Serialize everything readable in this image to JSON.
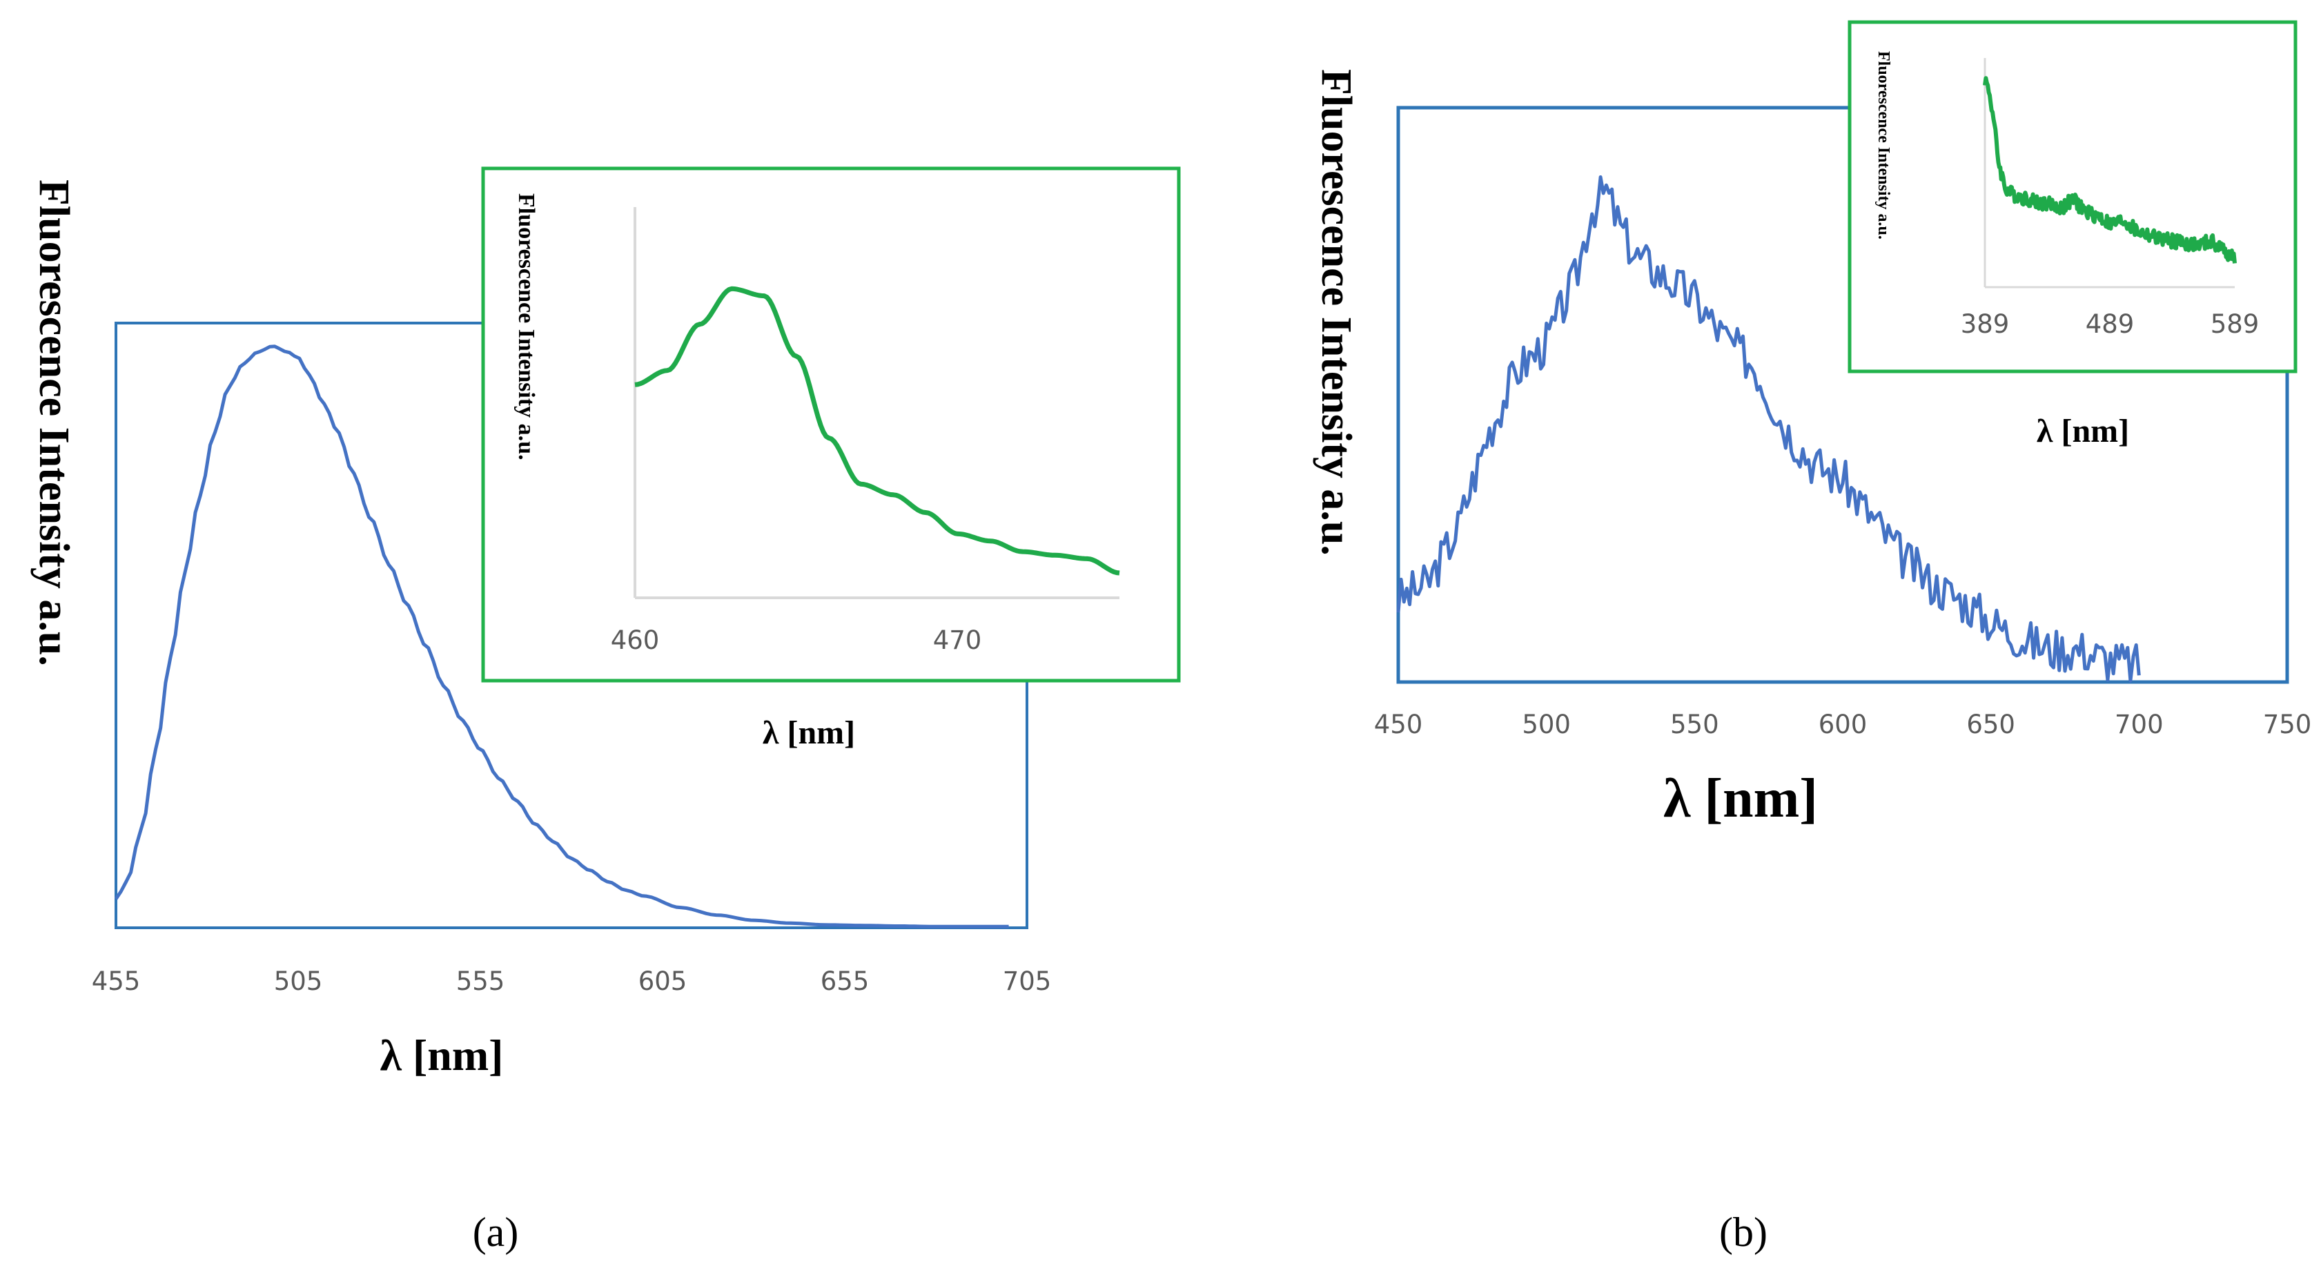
{
  "colors": {
    "main": "#4472C4",
    "inset": "#1FAA4A",
    "frame_main": "#2E75B6",
    "frame_inset": "#21B24B"
  },
  "chart_data": [
    {
      "id": "a-main",
      "type": "line",
      "panel_label": "(a)",
      "xlabel": "λ [nm]",
      "ylabel": "Fluorescence Intensity a.u.",
      "xlim": [
        455,
        705
      ],
      "ylim": [
        0,
        1.05
      ],
      "xticks": [
        "455",
        "505",
        "555",
        "605",
        "655",
        "705"
      ],
      "x": [
        455,
        458,
        462,
        466,
        470,
        474,
        478,
        482,
        486,
        490,
        494,
        498,
        502,
        505,
        508,
        512,
        516,
        520,
        525,
        530,
        535,
        540,
        545,
        550,
        555,
        560,
        565,
        570,
        575,
        580,
        585,
        590,
        595,
        600,
        610,
        620,
        630,
        640,
        650,
        660,
        670,
        680,
        690,
        700
      ],
      "y": [
        0.05,
        0.08,
        0.17,
        0.31,
        0.47,
        0.62,
        0.75,
        0.86,
        0.94,
        0.98,
        1.0,
        1.01,
        1.0,
        0.99,
        0.96,
        0.91,
        0.86,
        0.79,
        0.71,
        0.63,
        0.56,
        0.49,
        0.42,
        0.36,
        0.31,
        0.26,
        0.22,
        0.18,
        0.15,
        0.12,
        0.1,
        0.08,
        0.065,
        0.055,
        0.035,
        0.022,
        0.013,
        0.008,
        0.005,
        0.004,
        0.003,
        0.002,
        0.002,
        0.002
      ]
    },
    {
      "id": "a-inset",
      "type": "line",
      "xlabel": "λ [nm]",
      "ylabel": "Fluorescence Intensity a.u.",
      "xlim": [
        460,
        475
      ],
      "ylim": [
        0,
        1.1
      ],
      "xticks": [
        "460",
        "470"
      ],
      "x": [
        460,
        461,
        462,
        463,
        464,
        465,
        466,
        467,
        468,
        469,
        470,
        471,
        472,
        473,
        474,
        475
      ],
      "y": [
        0.6,
        0.64,
        0.77,
        0.87,
        0.85,
        0.68,
        0.45,
        0.32,
        0.29,
        0.24,
        0.18,
        0.16,
        0.13,
        0.12,
        0.11,
        0.07
      ]
    },
    {
      "id": "b-main",
      "type": "line",
      "panel_label": "(b)",
      "xlabel": "λ [nm]",
      "ylabel": "Fluorescence Intensity a.u.",
      "xlim": [
        450,
        750
      ],
      "ylim": [
        0,
        1.05
      ],
      "xticks": [
        "450",
        "500",
        "550",
        "600",
        "650",
        "700",
        "750"
      ],
      "x": [
        450,
        460,
        470,
        480,
        490,
        500,
        510,
        515,
        520,
        525,
        530,
        540,
        550,
        560,
        570,
        580,
        590,
        600,
        610,
        620,
        630,
        640,
        650,
        660,
        670,
        680,
        690,
        700
      ],
      "y": [
        0.15,
        0.18,
        0.28,
        0.45,
        0.57,
        0.62,
        0.74,
        0.86,
        0.9,
        0.83,
        0.78,
        0.74,
        0.7,
        0.63,
        0.58,
        0.47,
        0.4,
        0.37,
        0.3,
        0.23,
        0.18,
        0.15,
        0.11,
        0.08,
        0.06,
        0.06,
        0.04,
        0.03
      ]
    },
    {
      "id": "b-inset",
      "type": "line",
      "xlabel": "λ [nm]",
      "ylabel": "Fluorescence Intensity a.u.",
      "xlim": [
        389,
        589
      ],
      "ylim": [
        0,
        1.1
      ],
      "xticks": [
        "389",
        "489",
        "589"
      ],
      "x": [
        389,
        392,
        395,
        400,
        405,
        410,
        420,
        430,
        440,
        450,
        460,
        470,
        480,
        490,
        500,
        510,
        520,
        530,
        540,
        550,
        560,
        570,
        580,
        589
      ],
      "y": [
        1.0,
        0.95,
        0.85,
        0.6,
        0.48,
        0.45,
        0.43,
        0.41,
        0.4,
        0.38,
        0.42,
        0.36,
        0.34,
        0.3,
        0.32,
        0.27,
        0.25,
        0.23,
        0.22,
        0.21,
        0.2,
        0.22,
        0.18,
        0.14
      ]
    }
  ]
}
